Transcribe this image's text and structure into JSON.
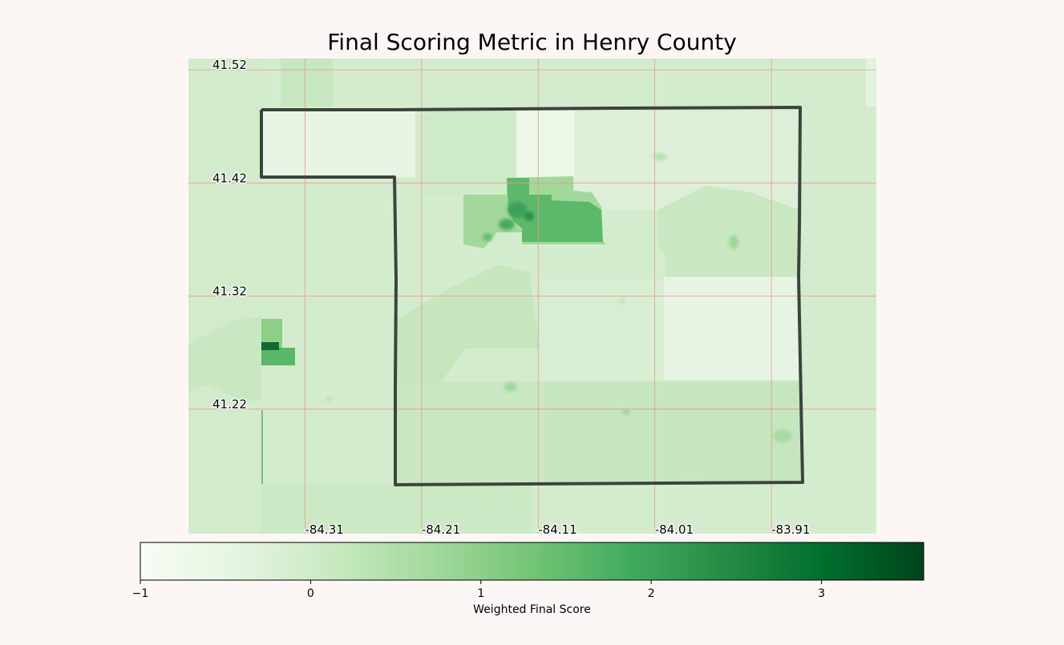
{
  "title": "Final Scoring Metric in Henry County",
  "map": {
    "lat_ticks": [
      "41.52",
      "41.42",
      "41.32",
      "41.22"
    ],
    "lon_ticks": [
      "-84.31",
      "-84.21",
      "-84.11",
      "-84.01",
      "-83.91"
    ],
    "gridline_color": "#e79a8a",
    "boundary_color": "#3c443e",
    "lat_range": [
      41.11,
      41.53
    ],
    "lon_range": [
      -84.41,
      -83.82
    ]
  },
  "colorbar": {
    "label": "Weighted Final Score",
    "min": -1,
    "max": 3.6,
    "ticks": [
      "−1",
      "0",
      "1",
      "2",
      "3"
    ],
    "tick_values": [
      -1,
      0,
      1,
      2,
      3
    ],
    "colormap": "Greens",
    "stops": [
      "#f7fcf5",
      "#e5f5e0",
      "#c7e9c0",
      "#a1d99b",
      "#74c476",
      "#41ab5d",
      "#238b45",
      "#006d2c",
      "#00441b"
    ]
  },
  "colors": {
    "background": "#fcf7f5",
    "base_fill": "#d4ecce"
  }
}
